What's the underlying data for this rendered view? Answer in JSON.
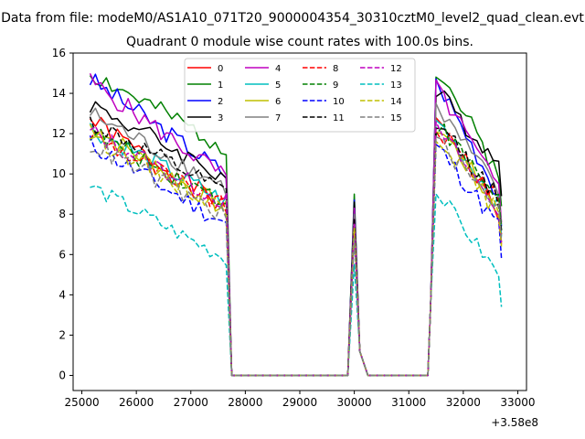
{
  "chart_data": {
    "type": "line",
    "suptitle": "Data from file: modeM0/AS1A10_071T20_9000004354_30310cztM0_level2_quad_clean.evt",
    "title": "Quadrant 0 module wise count rates with 100.0s bins.",
    "xlabel": "",
    "ylabel": "",
    "x_offset_label": "+3.58e8",
    "x_offset": 358000000,
    "xlim": [
      24840,
      33160
    ],
    "ylim": [
      -0.75,
      16
    ],
    "xticks": [
      25000,
      26000,
      27000,
      28000,
      29000,
      30000,
      31000,
      32000,
      33000
    ],
    "xtick_labels": [
      "25000",
      "26000",
      "27000",
      "28000",
      "29000",
      "30000",
      "31000",
      "32000",
      "33000"
    ],
    "yticks": [
      0,
      2,
      4,
      6,
      8,
      10,
      12,
      14,
      16
    ],
    "ytick_labels": [
      "0",
      "2",
      "4",
      "6",
      "8",
      "10",
      "12",
      "14",
      "16"
    ],
    "legend_location": "upper-center",
    "x_segments": [
      {
        "start": 25150,
        "step": 100,
        "count": 26
      },
      {
        "start": 27750,
        "step": 100,
        "count": 22
      },
      {
        "start": 29950,
        "step": 100,
        "count": 14
      },
      {
        "start": 31350,
        "step": 100,
        "count": 14
      }
    ],
    "series": [
      {
        "name": "0",
        "color": "#ff0000",
        "dash": "solid",
        "level1": 12.7,
        "end1": 8.3,
        "peak": 8.0,
        "level2": 12.8,
        "end2": 8.1,
        "noise": 0.5,
        "seed": 1
      },
      {
        "name": "1",
        "color": "#008000",
        "dash": "solid",
        "level1": 15.0,
        "end1": 11.3,
        "peak": 9.0,
        "level2": 15.2,
        "end2": 10.0,
        "noise": 0.5,
        "seed": 2
      },
      {
        "name": "2",
        "color": "#0000ff",
        "dash": "solid",
        "level1": 14.7,
        "end1": 10.0,
        "peak": 8.7,
        "level2": 14.5,
        "end2": 9.0,
        "noise": 0.5,
        "seed": 3
      },
      {
        "name": "3",
        "color": "#000000",
        "dash": "solid",
        "level1": 13.5,
        "end1": 9.8,
        "peak": 8.6,
        "level2": 14.0,
        "end2": 10.5,
        "noise": 0.5,
        "seed": 4
      },
      {
        "name": "4",
        "color": "#bf00bf",
        "dash": "solid",
        "level1": 14.6,
        "end1": 9.8,
        "peak": 8.3,
        "level2": 14.2,
        "end2": 9.2,
        "noise": 0.5,
        "seed": 5
      },
      {
        "name": "5",
        "color": "#00bfbf",
        "dash": "solid",
        "level1": 12.3,
        "end1": 8.6,
        "peak": 7.5,
        "level2": 12.6,
        "end2": 8.5,
        "noise": 0.5,
        "seed": 6
      },
      {
        "name": "6",
        "color": "#bfbf00",
        "dash": "solid",
        "level1": 12.4,
        "end1": 8.2,
        "peak": 7.4,
        "level2": 12.4,
        "end2": 8.2,
        "noise": 0.5,
        "seed": 7
      },
      {
        "name": "7",
        "color": "#808080",
        "dash": "solid",
        "level1": 13.0,
        "end1": 9.3,
        "peak": 8.0,
        "level2": 13.2,
        "end2": 9.1,
        "noise": 0.5,
        "seed": 8
      },
      {
        "name": "8",
        "color": "#ff0000",
        "dash": "dashed",
        "level1": 12.0,
        "end1": 8.3,
        "peak": 7.4,
        "level2": 12.2,
        "end2": 8.6,
        "noise": 0.5,
        "seed": 9
      },
      {
        "name": "9",
        "color": "#008000",
        "dash": "dashed",
        "level1": 12.1,
        "end1": 8.6,
        "peak": 7.6,
        "level2": 12.4,
        "end2": 8.8,
        "noise": 0.5,
        "seed": 10
      },
      {
        "name": "10",
        "color": "#0000ff",
        "dash": "dashed",
        "level1": 11.5,
        "end1": 7.5,
        "peak": 7.0,
        "level2": 11.3,
        "end2": 7.4,
        "noise": 0.5,
        "seed": 11
      },
      {
        "name": "11",
        "color": "#000000",
        "dash": "dashed",
        "level1": 12.6,
        "end1": 9.0,
        "peak": 7.8,
        "level2": 12.5,
        "end2": 8.8,
        "noise": 0.5,
        "seed": 12
      },
      {
        "name": "12",
        "color": "#bf00bf",
        "dash": "dashed",
        "level1": 12.1,
        "end1": 8.6,
        "peak": 7.5,
        "level2": 12.2,
        "end2": 8.2,
        "noise": 0.5,
        "seed": 13
      },
      {
        "name": "13",
        "color": "#00bfbf",
        "dash": "dashed",
        "level1": 9.4,
        "end1": 5.8,
        "peak": 5.5,
        "level2": 9.0,
        "end2": 5.0,
        "noise": 0.4,
        "seed": 14
      },
      {
        "name": "14",
        "color": "#bfbf00",
        "dash": "dashed",
        "level1": 12.0,
        "end1": 8.2,
        "peak": 7.3,
        "level2": 12.0,
        "end2": 8.0,
        "noise": 0.5,
        "seed": 15
      },
      {
        "name": "15",
        "color": "#808080",
        "dash": "dashed",
        "level1": 11.5,
        "end1": 7.9,
        "peak": 6.8,
        "level2": 11.6,
        "end2": 8.3,
        "noise": 0.5,
        "seed": 16
      }
    ]
  }
}
